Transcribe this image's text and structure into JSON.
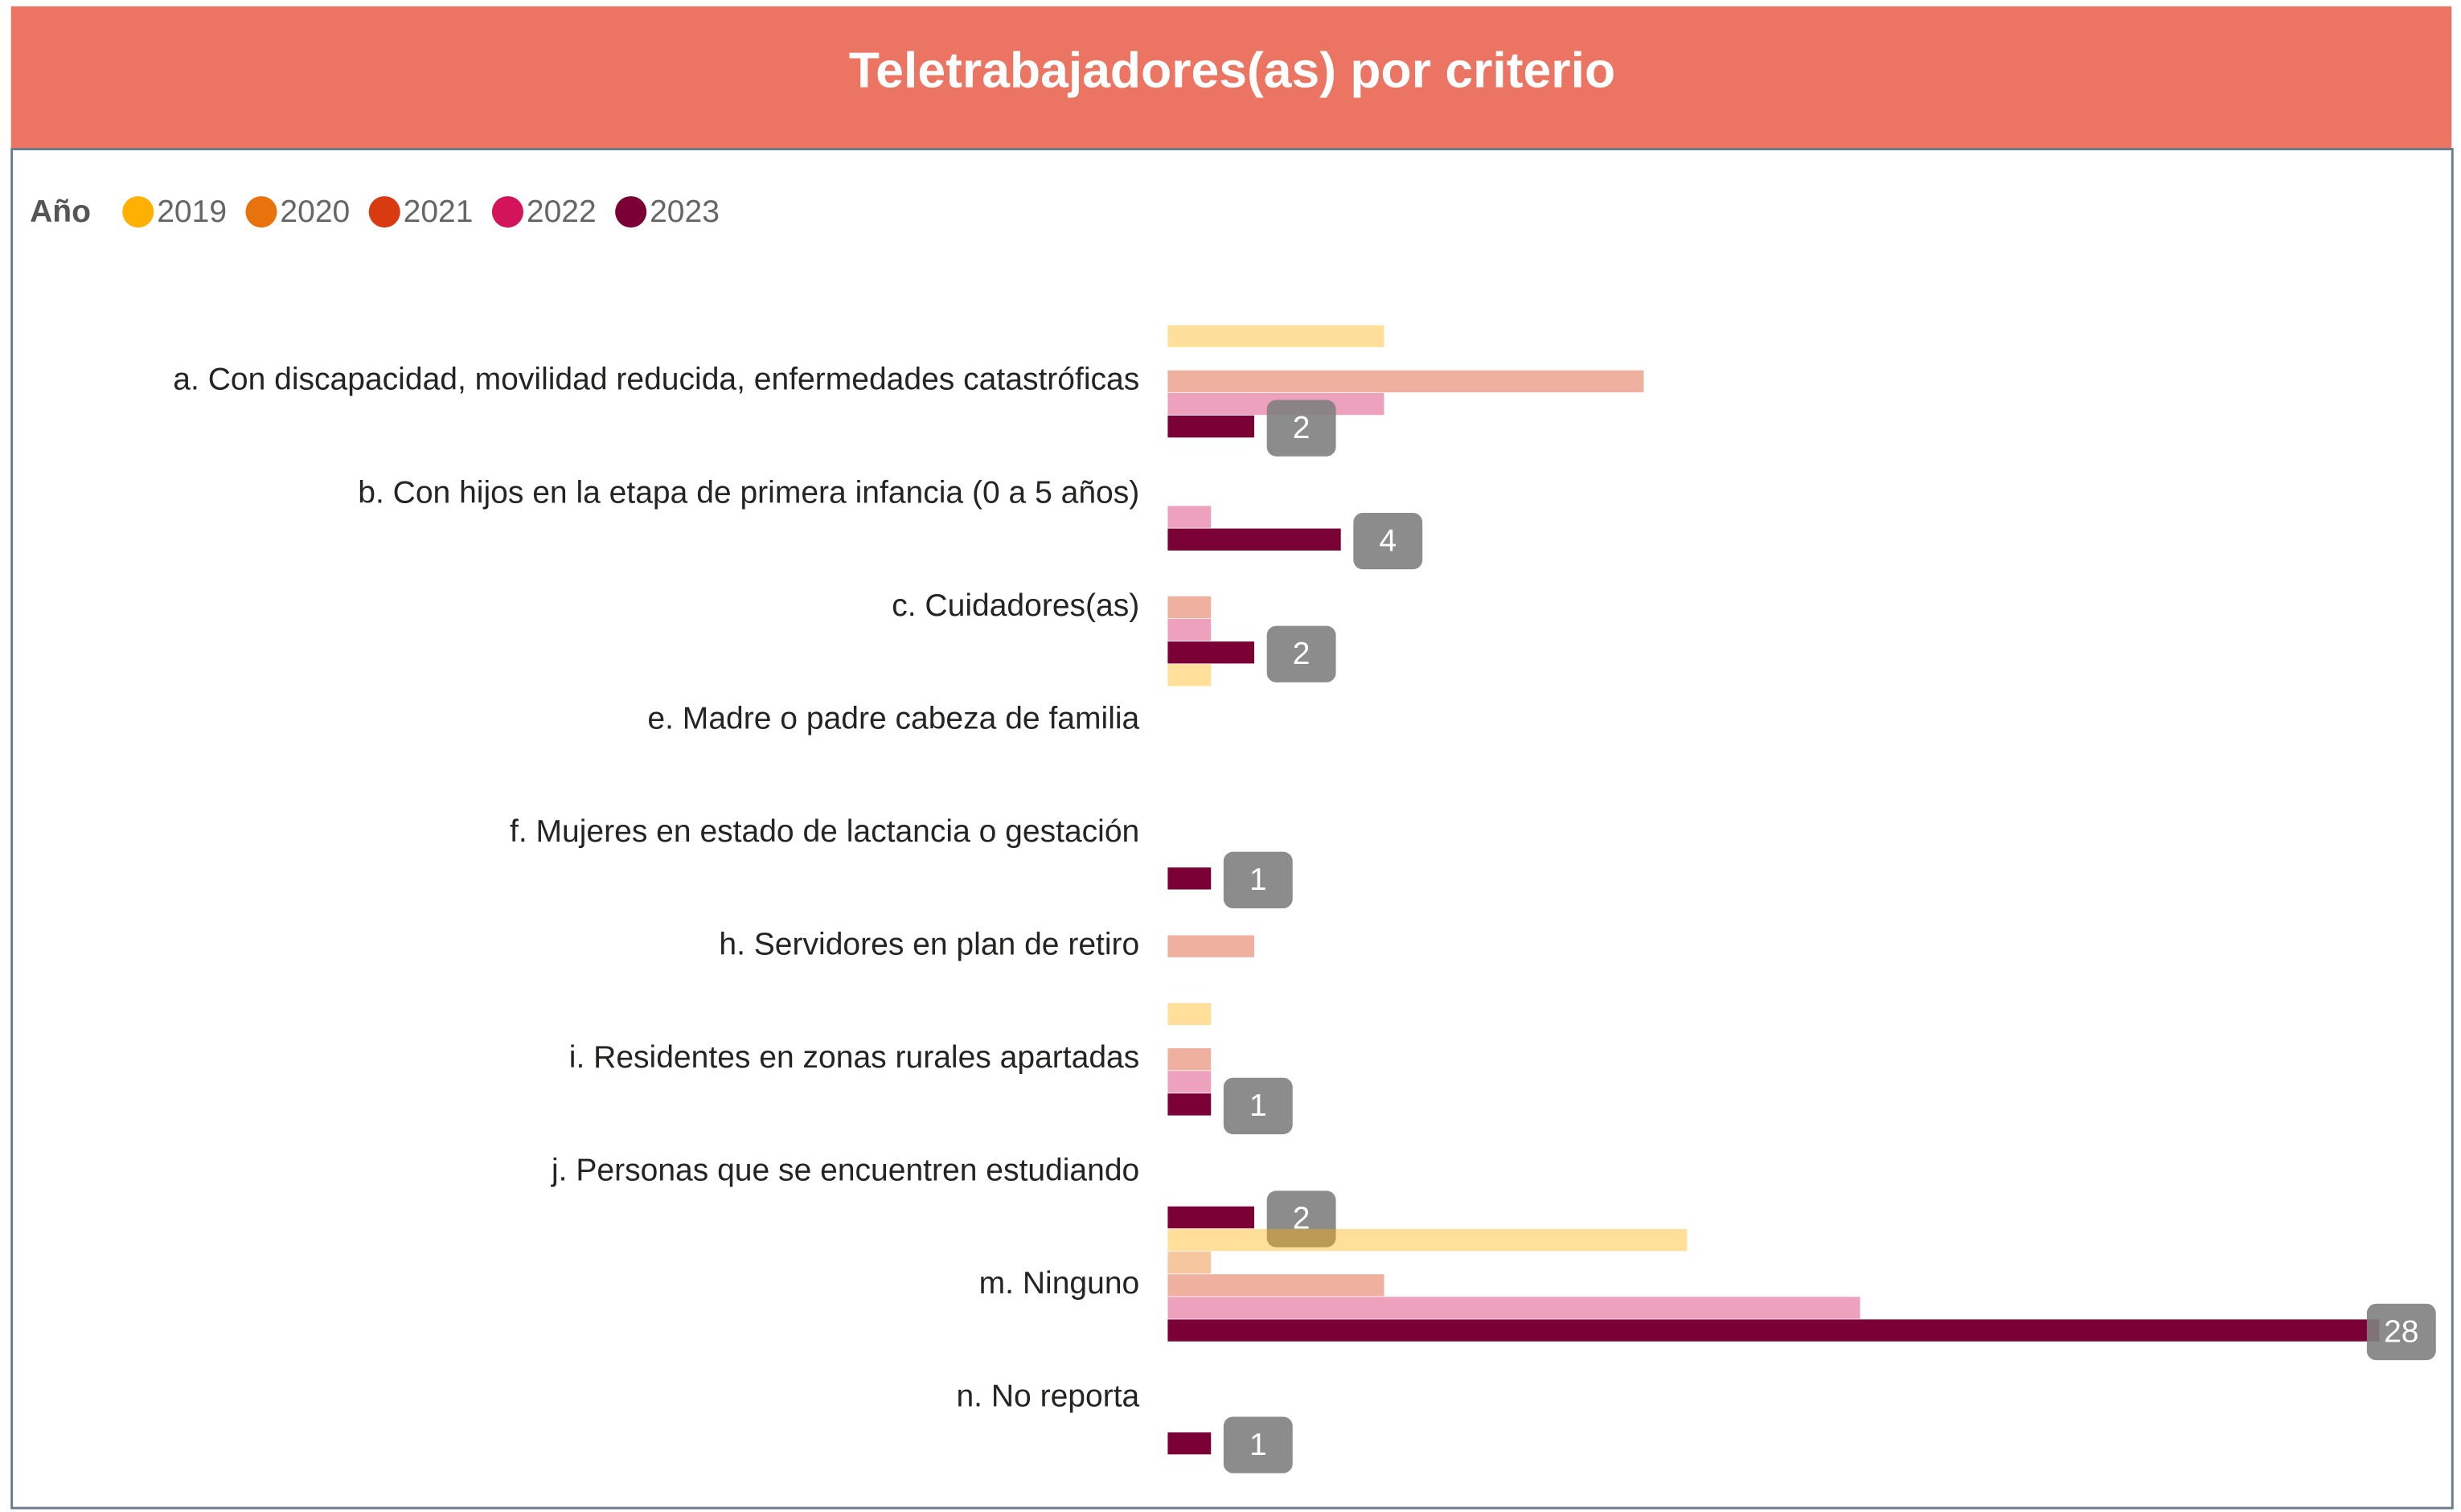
{
  "chart_data": {
    "type": "hbar",
    "title": "Teletrabajadores(as) por criterio",
    "legend_title": "Año",
    "categories": [
      "a. Con discapacidad, movilidad reducida, enfermedades catastróficas",
      "b. Con hijos en la etapa de primera infancia (0 a 5 años)",
      "c. Cuidadores(as)",
      "e. Madre o padre cabeza de familia",
      "f. Mujeres en estado de lactancia o gestación",
      "h. Servidores en plan de retiro",
      "i. Residentes en zonas rurales apartadas",
      "j. Personas que se encuentren estudiando",
      "m. Ninguno",
      "n. No reporta"
    ],
    "series": [
      {
        "name": "2019",
        "color": "#FFB000",
        "values": [
          5,
          null,
          null,
          1,
          null,
          null,
          1,
          null,
          12,
          null
        ]
      },
      {
        "name": "2020",
        "color": "#E8730C",
        "values": [
          null,
          null,
          null,
          null,
          null,
          null,
          null,
          null,
          1,
          null
        ]
      },
      {
        "name": "2021",
        "color": "#D93A12",
        "values": [
          11,
          null,
          1,
          null,
          null,
          2,
          1,
          null,
          5,
          null
        ]
      },
      {
        "name": "2022",
        "color": "#D4145A",
        "values": [
          5,
          1,
          1,
          null,
          null,
          null,
          1,
          null,
          16,
          null
        ]
      },
      {
        "name": "2023",
        "color": "#7A0035",
        "values": [
          2,
          4,
          2,
          null,
          1,
          null,
          1,
          2,
          28,
          1
        ]
      }
    ],
    "highlighted": "2023",
    "xlim": [
      0,
      28
    ]
  }
}
